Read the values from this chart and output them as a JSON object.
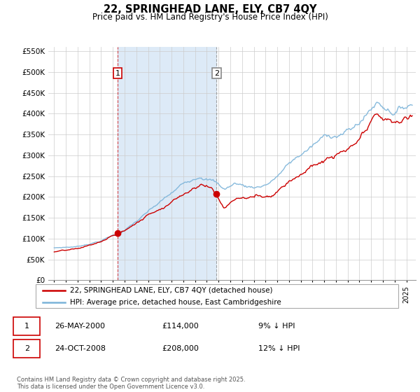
{
  "title": "22, SPRINGHEAD LANE, ELY, CB7 4QY",
  "subtitle": "Price paid vs. HM Land Registry's House Price Index (HPI)",
  "ylim": [
    0,
    560000
  ],
  "yticks": [
    0,
    50000,
    100000,
    150000,
    200000,
    250000,
    300000,
    350000,
    400000,
    450000,
    500000,
    550000
  ],
  "ytick_labels": [
    "£0",
    "£50K",
    "£100K",
    "£150K",
    "£200K",
    "£250K",
    "£300K",
    "£350K",
    "£400K",
    "£450K",
    "£500K",
    "£550K"
  ],
  "hpi_color": "#7ab3d9",
  "price_color": "#cc0000",
  "shade_color": "#ddeaf7",
  "sale1_date": 2000.4,
  "sale1_price": 114000,
  "sale2_date": 2008.82,
  "sale2_price": 208000,
  "legend_line1": "22, SPRINGHEAD LANE, ELY, CB7 4QY (detached house)",
  "legend_line2": "HPI: Average price, detached house, East Cambridgeshire",
  "table_row1": [
    "1",
    "26-MAY-2000",
    "£114,000",
    "9% ↓ HPI"
  ],
  "table_row2": [
    "2",
    "24-OCT-2008",
    "£208,000",
    "12% ↓ HPI"
  ],
  "footnote": "Contains HM Land Registry data © Crown copyright and database right 2025.\nThis data is licensed under the Open Government Licence v3.0."
}
